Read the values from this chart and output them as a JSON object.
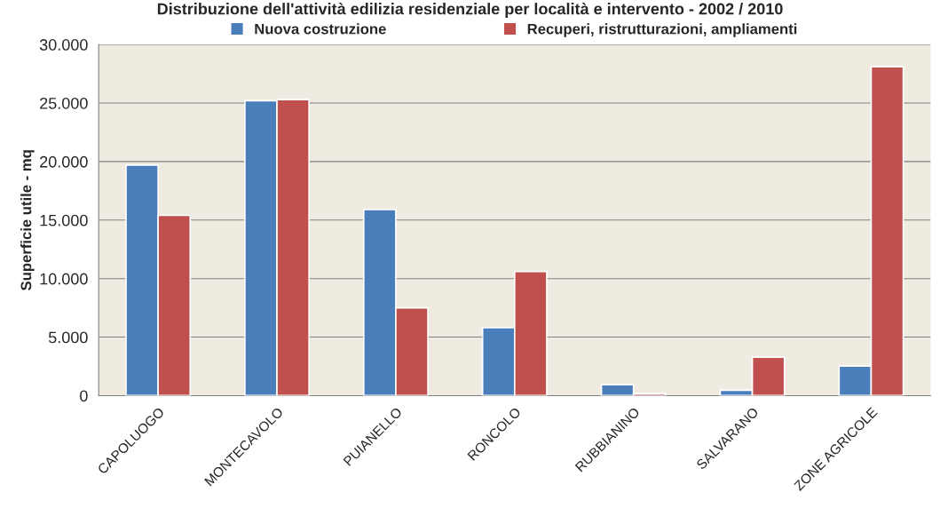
{
  "chart_data": {
    "type": "bar",
    "title": "Distribuzione dell'attività edilizia residenziale per località e intervento - 2002 / 2010",
    "ylabel": "Superficie utile - mq",
    "categories": [
      "CAPOLUOGO",
      "MONTECAVOLO",
      "PUIANELLO",
      "RONCOLO",
      "RUBBIANINO",
      "SALVARANO",
      "ZONE AGRICOLE"
    ],
    "series": [
      {
        "name": "Nuova costruzione",
        "color": "#4a7ebb",
        "values": [
          19700,
          25200,
          15900,
          5800,
          940,
          460,
          2530
        ]
      },
      {
        "name": "Recuperi, ristrutturazioni, ampliamenti",
        "color": "#c0504d",
        "values": [
          15400,
          25300,
          7500,
          10600,
          180,
          3290,
          28100
        ]
      }
    ],
    "ylim": [
      0,
      30000
    ],
    "yticks": [
      {
        "value": 0,
        "label": "0"
      },
      {
        "value": 5000,
        "label": "5.000"
      },
      {
        "value": 10000,
        "label": "10.000"
      },
      {
        "value": 15000,
        "label": "15.000"
      },
      {
        "value": 20000,
        "label": "20.000"
      },
      {
        "value": 25000,
        "label": "25.000"
      },
      {
        "value": 30000,
        "label": "30.000"
      }
    ],
    "grid": "y",
    "legend": "top"
  }
}
